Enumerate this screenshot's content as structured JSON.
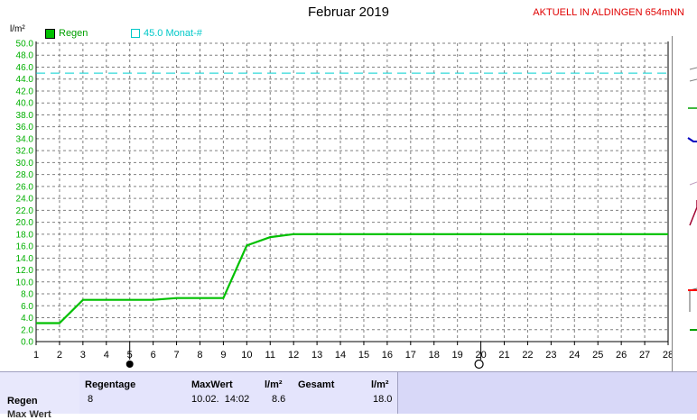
{
  "header": {
    "title": "Februar 2019",
    "station": "AKTUELL IN ALDINGEN 654mNN",
    "unit": "l/m²"
  },
  "legend": {
    "series_label": "Regen",
    "reference_label": "45.0 Monat-#"
  },
  "colors": {
    "series": "#00c000",
    "reference": "#00d0d0",
    "grid": "#808080",
    "axis_text": "#00b000"
  },
  "chart_data": {
    "type": "line",
    "title": "Februar 2019",
    "ylabel": "l/m²",
    "xlabel": "",
    "x": [
      1,
      2,
      3,
      4,
      5,
      6,
      7,
      8,
      9,
      10,
      11,
      12,
      13,
      14,
      15,
      16,
      17,
      18,
      19,
      20,
      21,
      22,
      23,
      24,
      25,
      26,
      27,
      28
    ],
    "series": [
      {
        "name": "Regen",
        "values": [
          3.1,
          3.1,
          7.0,
          7.0,
          7.0,
          7.0,
          7.3,
          7.3,
          7.3,
          16.1,
          17.5,
          18.0,
          18.0,
          18.0,
          18.0,
          18.0,
          18.0,
          18.0,
          18.0,
          18.0,
          18.0,
          18.0,
          18.0,
          18.0,
          18.0,
          18.0,
          18.0,
          18.0
        ]
      }
    ],
    "reference_line": {
      "label": "45.0 Monat-#",
      "value": 45.0
    },
    "ylim": [
      0,
      50
    ],
    "yticks": [
      "0.0",
      "2.0",
      "4.0",
      "6.0",
      "8.0",
      "10.0",
      "12.0",
      "14.0",
      "16.0",
      "18.0",
      "20.0",
      "22.0",
      "24.0",
      "26.0",
      "28.0",
      "30.0",
      "32.0",
      "34.0",
      "36.0",
      "38.0",
      "40.0",
      "42.0",
      "44.0",
      "46.0",
      "48.0",
      "50.0"
    ],
    "xlim": [
      1,
      28
    ],
    "grid": true,
    "markers": [
      {
        "day": 5,
        "symbol": "filled-circle"
      },
      {
        "day": 20,
        "symbol": "open-circle"
      }
    ]
  },
  "stats": {
    "row_label": "Regen",
    "row_label_2": "Max Wert",
    "regentage_label": "Regentage",
    "regentage_value": "8",
    "maxwert_label": "MaxWert",
    "maxwert_unit": "l/m²",
    "maxwert_date": "10.02.  14:02",
    "maxwert_value": "8.6",
    "gesamt_label": "Gesamt",
    "gesamt_unit": "l/m²",
    "gesamt_value": "18.0"
  }
}
